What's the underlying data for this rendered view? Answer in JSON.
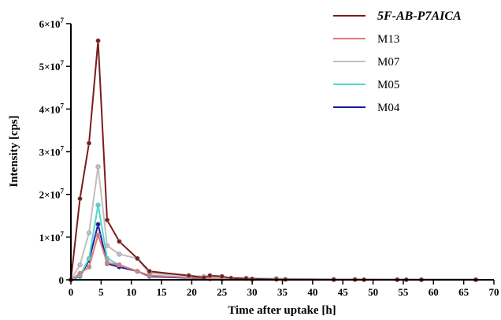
{
  "chart_data": {
    "type": "line",
    "xlabel": "Time after uptake [h]",
    "ylabel": "Intensity [cps]",
    "xlim": [
      0,
      70
    ],
    "ylim": [
      0,
      60000000
    ],
    "x_ticks": [
      "0",
      "5",
      "10",
      "15",
      "20",
      "25",
      "30",
      "35",
      "40",
      "45",
      "50",
      "55",
      "60",
      "65",
      "70"
    ],
    "y_ticks": [
      {
        "base": "0",
        "exp": ""
      },
      {
        "base": "1×10",
        "exp": "7"
      },
      {
        "base": "2×10",
        "exp": "7"
      },
      {
        "base": "3×10",
        "exp": "7"
      },
      {
        "base": "4×10",
        "exp": "7"
      },
      {
        "base": "5×10",
        "exp": "7"
      },
      {
        "base": "6×10",
        "exp": "7"
      }
    ],
    "grid": false,
    "legend_position": "top-right",
    "series": [
      {
        "name": "5F-AB-P7AICA",
        "color": "#7b1c1c",
        "points": [
          [
            0,
            0
          ],
          [
            1.5,
            19000000
          ],
          [
            3,
            32000000
          ],
          [
            4.5,
            56000000
          ],
          [
            6,
            14000000
          ],
          [
            8,
            9000000
          ],
          [
            11,
            5000000
          ],
          [
            13,
            2000000
          ],
          [
            19.5,
            1000000
          ],
          [
            22,
            500000
          ],
          [
            23,
            1000000
          ],
          [
            25,
            800000
          ],
          [
            26.5,
            400000
          ],
          [
            29,
            300000
          ],
          [
            30,
            200000
          ],
          [
            34,
            100000
          ],
          [
            35.5,
            80000
          ],
          [
            43.5,
            50000
          ],
          [
            47,
            40000
          ],
          [
            48.5,
            30000
          ],
          [
            54,
            20000
          ],
          [
            55.5,
            20000
          ],
          [
            58,
            10000
          ],
          [
            67,
            10000
          ]
        ]
      },
      {
        "name": "M13",
        "color": "#e07a7a",
        "points": [
          [
            0,
            0
          ],
          [
            1.5,
            1500000
          ],
          [
            3,
            3000000
          ],
          [
            4.5,
            10500000
          ],
          [
            6,
            4000000
          ],
          [
            8,
            3500000
          ],
          [
            11,
            2000000
          ],
          [
            13,
            1000000
          ],
          [
            19.5,
            500000
          ],
          [
            23,
            300000
          ],
          [
            25,
            200000
          ],
          [
            30,
            100000
          ],
          [
            43.5,
            50000
          ],
          [
            67,
            10000
          ]
        ]
      },
      {
        "name": "M07",
        "color": "#c0c0c0",
        "points": [
          [
            0,
            0
          ],
          [
            1.5,
            3500000
          ],
          [
            3,
            11000000
          ],
          [
            4.5,
            26500000
          ],
          [
            6,
            8000000
          ],
          [
            8,
            6000000
          ],
          [
            11,
            5000000
          ],
          [
            13,
            1500000
          ],
          [
            19.5,
            1000000
          ],
          [
            22,
            800000
          ],
          [
            23,
            800000
          ],
          [
            25,
            500000
          ],
          [
            29,
            400000
          ],
          [
            34,
            300000
          ],
          [
            43.5,
            100000
          ],
          [
            47,
            100000
          ],
          [
            54,
            50000
          ],
          [
            58,
            30000
          ],
          [
            67,
            20000
          ]
        ]
      },
      {
        "name": "M05",
        "color": "#4fd9cf",
        "points": [
          [
            0,
            0
          ],
          [
            1.5,
            1000000
          ],
          [
            3,
            5000000
          ],
          [
            4.5,
            17500000
          ],
          [
            6,
            5000000
          ],
          [
            8,
            3500000
          ],
          [
            11,
            2000000
          ],
          [
            13,
            1000000
          ],
          [
            19.5,
            600000
          ],
          [
            23,
            400000
          ],
          [
            25,
            300000
          ],
          [
            30,
            100000
          ],
          [
            43.5,
            50000
          ],
          [
            67,
            10000
          ]
        ]
      },
      {
        "name": "M04",
        "color": "#1a1a9c",
        "points": [
          [
            0,
            0
          ],
          [
            1.5,
            800000
          ],
          [
            3,
            4500000
          ],
          [
            4.5,
            13000000
          ],
          [
            6,
            3800000
          ],
          [
            8,
            3000000
          ],
          [
            11,
            2000000
          ],
          [
            13,
            800000
          ],
          [
            19.5,
            400000
          ],
          [
            23,
            200000
          ],
          [
            25,
            150000
          ],
          [
            30,
            80000
          ],
          [
            43.5,
            40000
          ],
          [
            67,
            10000
          ]
        ]
      }
    ]
  }
}
